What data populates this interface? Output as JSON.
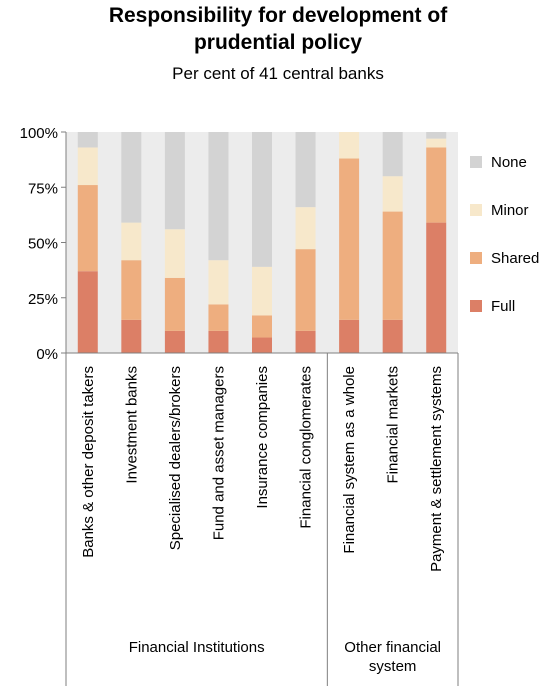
{
  "title_line1": "Responsibility for development of",
  "title_line2": "prudential policy",
  "subtitle": "Per cent of 41 central banks",
  "colors": {
    "Full": "#dc7f66",
    "Shared": "#eeae7f",
    "Minor": "#f7e8cb",
    "None": "#d3d3d3",
    "plot_bg": "#ececec",
    "axis": "#7f7f7f"
  },
  "chart_data": {
    "type": "bar",
    "stacked": true,
    "title": "Responsibility for development of prudential policy",
    "subtitle": "Per cent of 41 central banks",
    "ylim": [
      0,
      100
    ],
    "yticks": [
      "0%",
      "25%",
      "50%",
      "75%",
      "100%"
    ],
    "categories": [
      "Banks & other deposit takers",
      "Investment banks",
      "Specialised dealers/brokers",
      "Fund and asset managers",
      "Insurance companies",
      "Financial conglomerates",
      "Financial system as a whole",
      "Financial markets",
      "Payment & settlement systems"
    ],
    "series": [
      {
        "name": "Full",
        "values": [
          37,
          15,
          10,
          10,
          7,
          10,
          15,
          15,
          59
        ]
      },
      {
        "name": "Shared",
        "values": [
          39,
          27,
          24,
          12,
          10,
          37,
          73,
          49,
          34
        ]
      },
      {
        "name": "Minor",
        "values": [
          17,
          17,
          22,
          20,
          22,
          19,
          12,
          16,
          4
        ]
      },
      {
        "name": "None",
        "values": [
          7,
          41,
          44,
          58,
          61,
          34,
          0,
          20,
          3
        ]
      }
    ],
    "legend": [
      "None",
      "Minor",
      "Shared",
      "Full"
    ],
    "legend_position": "right",
    "groups": [
      {
        "label": "Financial Institutions",
        "count": 6
      },
      {
        "label_line1": "Other financial",
        "label_line2": "system",
        "count": 3
      }
    ],
    "grid": false
  }
}
